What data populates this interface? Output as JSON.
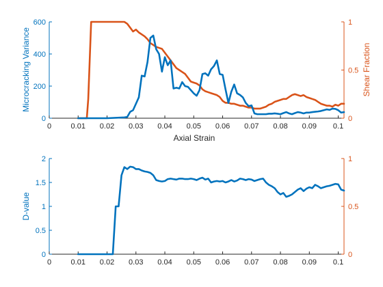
{
  "colors": {
    "left": "#0072BD",
    "right": "#D95319",
    "xaxis": "#262626"
  },
  "chart_data": [
    {
      "type": "line",
      "xlabel": "Axial Strain",
      "ylabel_left": "Microcracking Variance",
      "ylabel_right": "Shear Fraction",
      "xlim": [
        0,
        0.102
      ],
      "ylim_left": [
        0,
        600
      ],
      "ylim_right": [
        0,
        1
      ],
      "xticks": [
        0,
        0.01,
        0.02,
        0.03,
        0.04,
        0.05,
        0.06,
        0.07,
        0.08,
        0.09,
        0.1
      ],
      "xtick_labels": [
        "0",
        "0.01",
        "0.02",
        "0.03",
        "0.04",
        "0.05",
        "0.06",
        "0.07",
        "0.08",
        "0.09",
        "0.1"
      ],
      "yticks_left": [
        0,
        200,
        400,
        600
      ],
      "ytick_labels_left": [
        "0",
        "200",
        "400",
        "600"
      ],
      "yticks_right": [
        0,
        0.5,
        1
      ],
      "ytick_labels_right": [
        "0",
        "0.5",
        "1"
      ],
      "grid": false,
      "series": [
        {
          "axis": "left",
          "x": [
            0.01,
            0.02,
            0.026,
            0.027,
            0.028,
            0.029,
            0.03,
            0.031,
            0.032,
            0.033,
            0.034,
            0.035,
            0.036,
            0.037,
            0.038,
            0.039,
            0.04,
            0.041,
            0.042,
            0.043,
            0.044,
            0.045,
            0.046,
            0.047,
            0.048,
            0.049,
            0.05,
            0.051,
            0.052,
            0.053,
            0.054,
            0.055,
            0.056,
            0.057,
            0.058,
            0.059,
            0.06,
            0.061,
            0.062,
            0.063,
            0.064,
            0.065,
            0.066,
            0.067,
            0.068,
            0.069,
            0.07,
            0.071,
            0.072,
            0.073,
            0.074,
            0.075,
            0.076,
            0.077,
            0.078,
            0.079,
            0.08,
            0.081,
            0.082,
            0.083,
            0.084,
            0.085,
            0.086,
            0.087,
            0.088,
            0.089,
            0.09,
            0.091,
            0.092,
            0.093,
            0.094,
            0.095,
            0.096,
            0.097,
            0.098,
            0.099,
            0.1,
            0.101,
            0.102
          ],
          "y": [
            0,
            0,
            5,
            8,
            40,
            50,
            90,
            130,
            265,
            260,
            350,
            500,
            515,
            430,
            400,
            290,
            380,
            330,
            360,
            185,
            190,
            185,
            225,
            200,
            195,
            175,
            155,
            140,
            175,
            275,
            280,
            265,
            305,
            325,
            360,
            275,
            270,
            180,
            95,
            165,
            210,
            155,
            145,
            130,
            95,
            75,
            80,
            30,
            25,
            25,
            25,
            25,
            28,
            28,
            30,
            28,
            25,
            32,
            38,
            30,
            25,
            32,
            38,
            35,
            30,
            35,
            35,
            38,
            40,
            42,
            45,
            50,
            55,
            52,
            60,
            58,
            50,
            35,
            38
          ]
        },
        {
          "axis": "right",
          "x": [
            0.01,
            0.013,
            0.0135,
            0.0145,
            0.015,
            0.016,
            0.018,
            0.02,
            0.022,
            0.024,
            0.026,
            0.027,
            0.028,
            0.029,
            0.03,
            0.031,
            0.032,
            0.033,
            0.034,
            0.035,
            0.036,
            0.037,
            0.038,
            0.039,
            0.04,
            0.041,
            0.042,
            0.043,
            0.044,
            0.045,
            0.046,
            0.047,
            0.048,
            0.049,
            0.05,
            0.051,
            0.052,
            0.053,
            0.054,
            0.055,
            0.056,
            0.057,
            0.058,
            0.059,
            0.06,
            0.061,
            0.062,
            0.063,
            0.064,
            0.065,
            0.066,
            0.067,
            0.068,
            0.069,
            0.07,
            0.071,
            0.072,
            0.073,
            0.074,
            0.075,
            0.076,
            0.077,
            0.078,
            0.079,
            0.08,
            0.081,
            0.082,
            0.083,
            0.084,
            0.085,
            0.086,
            0.087,
            0.088,
            0.089,
            0.09,
            0.091,
            0.092,
            0.093,
            0.094,
            0.095,
            0.096,
            0.097,
            0.098,
            0.099,
            0.1,
            0.101,
            0.102
          ],
          "y": [
            0,
            0,
            0.2,
            1.0,
            1.0,
            1.0,
            1.0,
            1.0,
            1.0,
            1.0,
            1.0,
            0.98,
            0.94,
            0.9,
            0.92,
            0.89,
            0.87,
            0.85,
            0.82,
            0.78,
            0.76,
            0.74,
            0.73,
            0.72,
            0.68,
            0.64,
            0.6,
            0.56,
            0.52,
            0.5,
            0.48,
            0.46,
            0.42,
            0.38,
            0.37,
            0.36,
            0.34,
            0.3,
            0.28,
            0.27,
            0.26,
            0.25,
            0.24,
            0.22,
            0.18,
            0.16,
            0.16,
            0.15,
            0.15,
            0.14,
            0.13,
            0.13,
            0.12,
            0.11,
            0.11,
            0.1,
            0.1,
            0.1,
            0.11,
            0.12,
            0.14,
            0.15,
            0.17,
            0.18,
            0.19,
            0.2,
            0.2,
            0.22,
            0.24,
            0.25,
            0.24,
            0.23,
            0.24,
            0.22,
            0.21,
            0.2,
            0.19,
            0.17,
            0.15,
            0.14,
            0.13,
            0.13,
            0.12,
            0.14,
            0.13,
            0.15,
            0.15
          ]
        }
      ]
    },
    {
      "type": "line",
      "xlabel": "",
      "ylabel_left": "D-value",
      "ylabel_right": "",
      "xlim": [
        0,
        0.102
      ],
      "ylim_left": [
        0,
        2
      ],
      "ylim_right": [
        0,
        1
      ],
      "xticks": [
        0,
        0.01,
        0.02,
        0.03,
        0.04,
        0.05,
        0.06,
        0.07,
        0.08,
        0.09,
        0.1
      ],
      "xtick_labels": [
        "0",
        "0.01",
        "0.02",
        "0.03",
        "0.04",
        "0.05",
        "0.06",
        "0.07",
        "0.08",
        "0.09",
        "0.1"
      ],
      "yticks_left": [
        0,
        0.5,
        1,
        1.5,
        2
      ],
      "ytick_labels_left": [
        "0",
        "0.5",
        "1",
        "1.5",
        "2"
      ],
      "yticks_right": [
        0,
        0.5,
        1
      ],
      "ytick_labels_right": [
        "0",
        "0.5",
        "1"
      ],
      "grid": false,
      "series": [
        {
          "axis": "left",
          "x": [
            0.01,
            0.021,
            0.022,
            0.023,
            0.024,
            0.025,
            0.026,
            0.027,
            0.028,
            0.029,
            0.03,
            0.031,
            0.032,
            0.033,
            0.034,
            0.035,
            0.036,
            0.037,
            0.038,
            0.039,
            0.04,
            0.041,
            0.042,
            0.043,
            0.044,
            0.045,
            0.046,
            0.047,
            0.048,
            0.049,
            0.05,
            0.051,
            0.052,
            0.053,
            0.054,
            0.055,
            0.056,
            0.057,
            0.058,
            0.059,
            0.06,
            0.061,
            0.062,
            0.063,
            0.064,
            0.065,
            0.066,
            0.067,
            0.068,
            0.069,
            0.07,
            0.071,
            0.072,
            0.073,
            0.074,
            0.075,
            0.076,
            0.077,
            0.078,
            0.079,
            0.08,
            0.081,
            0.082,
            0.083,
            0.084,
            0.085,
            0.086,
            0.087,
            0.088,
            0.089,
            0.09,
            0.091,
            0.092,
            0.093,
            0.094,
            0.095,
            0.096,
            0.097,
            0.098,
            0.099,
            0.1,
            0.101,
            0.102
          ],
          "y": [
            0,
            0,
            0,
            1.0,
            1.0,
            1.65,
            1.82,
            1.78,
            1.83,
            1.82,
            1.78,
            1.78,
            1.75,
            1.73,
            1.72,
            1.7,
            1.65,
            1.55,
            1.53,
            1.52,
            1.53,
            1.57,
            1.58,
            1.57,
            1.56,
            1.58,
            1.58,
            1.57,
            1.57,
            1.58,
            1.57,
            1.55,
            1.58,
            1.6,
            1.56,
            1.58,
            1.5,
            1.52,
            1.53,
            1.52,
            1.53,
            1.5,
            1.52,
            1.55,
            1.52,
            1.54,
            1.58,
            1.57,
            1.55,
            1.57,
            1.56,
            1.53,
            1.55,
            1.57,
            1.58,
            1.5,
            1.45,
            1.42,
            1.38,
            1.3,
            1.25,
            1.28,
            1.2,
            1.22,
            1.25,
            1.3,
            1.35,
            1.38,
            1.32,
            1.37,
            1.4,
            1.38,
            1.45,
            1.42,
            1.38,
            1.4,
            1.42,
            1.43,
            1.45,
            1.47,
            1.46,
            1.35,
            1.33
          ]
        }
      ]
    }
  ]
}
